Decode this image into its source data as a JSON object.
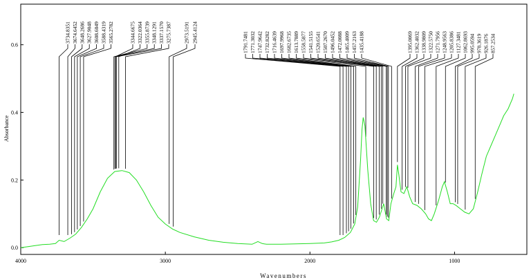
{
  "chart_data": {
    "type": "line",
    "xlabel": "Wavenumbers",
    "ylabel": "Absorbance",
    "xlim": [
      4000,
      500
    ],
    "ylim": [
      -0.02,
      0.72
    ],
    "x_ticks": [
      {
        "value": 4000,
        "label": "4000"
      },
      {
        "value": 3000,
        "label": "3000"
      },
      {
        "value": 2000,
        "label": "2000"
      },
      {
        "value": 1000,
        "label": "1000"
      }
    ],
    "y_ticks": [
      {
        "value": 0.0,
        "label": "0.0"
      },
      {
        "value": 0.2,
        "label": "0.2"
      },
      {
        "value": 0.4,
        "label": "0.4"
      },
      {
        "value": 0.6,
        "label": "0.6"
      }
    ],
    "series_color": "#22dd22",
    "spectrum": [
      [
        4000,
        0.0
      ],
      [
        3950,
        0.003
      ],
      [
        3900,
        0.006
      ],
      [
        3850,
        0.009
      ],
      [
        3800,
        0.01
      ],
      [
        3760,
        0.012
      ],
      [
        3734,
        0.022
      ],
      [
        3700,
        0.018
      ],
      [
        3660,
        0.028
      ],
      [
        3620,
        0.04
      ],
      [
        3580,
        0.06
      ],
      [
        3540,
        0.085
      ],
      [
        3500,
        0.115
      ],
      [
        3450,
        0.165
      ],
      [
        3400,
        0.205
      ],
      [
        3350,
        0.225
      ],
      [
        3300,
        0.228
      ],
      [
        3250,
        0.222
      ],
      [
        3200,
        0.2
      ],
      [
        3150,
        0.165
      ],
      [
        3100,
        0.125
      ],
      [
        3050,
        0.09
      ],
      [
        3000,
        0.07
      ],
      [
        2950,
        0.055
      ],
      [
        2900,
        0.045
      ],
      [
        2800,
        0.032
      ],
      [
        2700,
        0.022
      ],
      [
        2600,
        0.016
      ],
      [
        2500,
        0.012
      ],
      [
        2400,
        0.01
      ],
      [
        2360,
        0.018
      ],
      [
        2330,
        0.012
      ],
      [
        2300,
        0.01
      ],
      [
        2200,
        0.01
      ],
      [
        2100,
        0.011
      ],
      [
        2000,
        0.012
      ],
      [
        1900,
        0.014
      ],
      [
        1850,
        0.017
      ],
      [
        1800,
        0.022
      ],
      [
        1760,
        0.03
      ],
      [
        1720,
        0.045
      ],
      [
        1690,
        0.07
      ],
      [
        1670,
        0.12
      ],
      [
        1650,
        0.26
      ],
      [
        1640,
        0.35
      ],
      [
        1632,
        0.385
      ],
      [
        1620,
        0.36
      ],
      [
        1600,
        0.23
      ],
      [
        1580,
        0.13
      ],
      [
        1560,
        0.08
      ],
      [
        1540,
        0.075
      ],
      [
        1520,
        0.09
      ],
      [
        1505,
        0.11
      ],
      [
        1490,
        0.13
      ],
      [
        1470,
        0.085
      ],
      [
        1455,
        0.08
      ],
      [
        1440,
        0.13
      ],
      [
        1420,
        0.16
      ],
      [
        1405,
        0.18
      ],
      [
        1395,
        0.245
      ],
      [
        1385,
        0.215
      ],
      [
        1370,
        0.165
      ],
      [
        1350,
        0.16
      ],
      [
        1330,
        0.18
      ],
      [
        1310,
        0.15
      ],
      [
        1290,
        0.13
      ],
      [
        1260,
        0.125
      ],
      [
        1230,
        0.115
      ],
      [
        1200,
        0.1
      ],
      [
        1180,
        0.085
      ],
      [
        1160,
        0.08
      ],
      [
        1140,
        0.1
      ],
      [
        1110,
        0.14
      ],
      [
        1085,
        0.18
      ],
      [
        1070,
        0.195
      ],
      [
        1050,
        0.165
      ],
      [
        1030,
        0.13
      ],
      [
        1010,
        0.13
      ],
      [
        990,
        0.125
      ],
      [
        960,
        0.115
      ],
      [
        930,
        0.105
      ],
      [
        900,
        0.1
      ],
      [
        870,
        0.115
      ],
      [
        840,
        0.165
      ],
      [
        810,
        0.22
      ],
      [
        780,
        0.27
      ],
      [
        750,
        0.3
      ],
      [
        720,
        0.33
      ],
      [
        690,
        0.36
      ],
      [
        660,
        0.39
      ],
      [
        630,
        0.41
      ],
      [
        600,
        0.44
      ],
      [
        590,
        0.455
      ]
    ],
    "peaks": [
      {
        "wn": 3734.8351,
        "label": "3734.8351"
      },
      {
        "wn": 3674.6452,
        "label": "3674.6452"
      },
      {
        "wn": 3648.2686,
        "label": "3648.2686"
      },
      {
        "wn": 3627.9048,
        "label": "3627.9048"
      },
      {
        "wn": 3608.6049,
        "label": "3608.6049"
      },
      {
        "wn": 3588.4319,
        "label": "3588.4319"
      },
      {
        "wn": 3565.2782,
        "label": "3565.2782"
      },
      {
        "wn": 3344.6675,
        "label": "3344.6675"
      },
      {
        "wn": 3322.0364,
        "label": "3322.0364"
      },
      {
        "wn": 3355.8739,
        "label": "3355.8739"
      },
      {
        "wn": 3348.1291,
        "label": "3348.1291"
      },
      {
        "wn": 3337.157,
        "label": "3337.1570"
      },
      {
        "wn": 3275.7387,
        "label": "3275.7387"
      },
      {
        "wn": 2973.5191,
        "label": "2973.5191"
      },
      {
        "wn": 2945.4124,
        "label": "2945.4124"
      },
      {
        "wn": 1791.7481,
        "label": "1791.7481"
      },
      {
        "wn": 1771.3032,
        "label": "1771.3032"
      },
      {
        "wn": 1747.9642,
        "label": "1747.9642"
      },
      {
        "wn": 1732.8282,
        "label": "1732.8282"
      },
      {
        "wn": 1716.4639,
        "label": "1716.4639"
      },
      {
        "wn": 1697.9968,
        "label": "1697.9968"
      },
      {
        "wn": 1682.6735,
        "label": "1682.6735"
      },
      {
        "wn": 1613.7889,
        "label": "1613.7889"
      },
      {
        "wn": 1558.5877,
        "label": "1558.5877"
      },
      {
        "wn": 1541.5155,
        "label": "1541.5155"
      },
      {
        "wn": 1520.6541,
        "label": "1520.6541"
      },
      {
        "wn": 1507.267,
        "label": "1507.2670"
      },
      {
        "wn": 1496.0452,
        "label": "1496.0452"
      },
      {
        "wn": 1472.0088,
        "label": "1472.0088"
      },
      {
        "wn": 1465.4009,
        "label": "1465.4009"
      },
      {
        "wn": 1457.2163,
        "label": "1457.2163"
      },
      {
        "wn": 1435.4188,
        "label": "1435.4188"
      },
      {
        "wn": 1395.0069,
        "label": "1395.0069"
      },
      {
        "wn": 1362.4032,
        "label": "1362.4032"
      },
      {
        "wn": 1338.9809,
        "label": "1338.9809"
      },
      {
        "wn": 1322.575,
        "label": "1322.5750"
      },
      {
        "wn": 1271.7956,
        "label": "1271.7956"
      },
      {
        "wn": 1248.9563,
        "label": "1248.9563"
      },
      {
        "wn": 1205.8386,
        "label": "1205.8386"
      },
      {
        "wn": 1127.3481,
        "label": "1127.3481"
      },
      {
        "wn": 1062.8693,
        "label": "1062.8693"
      },
      {
        "wn": 995.0594,
        "label": "995.0594"
      },
      {
        "wn": 978.3619,
        "label": "978.3619"
      },
      {
        "wn": 926.1876,
        "label": "926.1876"
      },
      {
        "wn": 857.2534,
        "label": "857.2534"
      }
    ]
  }
}
